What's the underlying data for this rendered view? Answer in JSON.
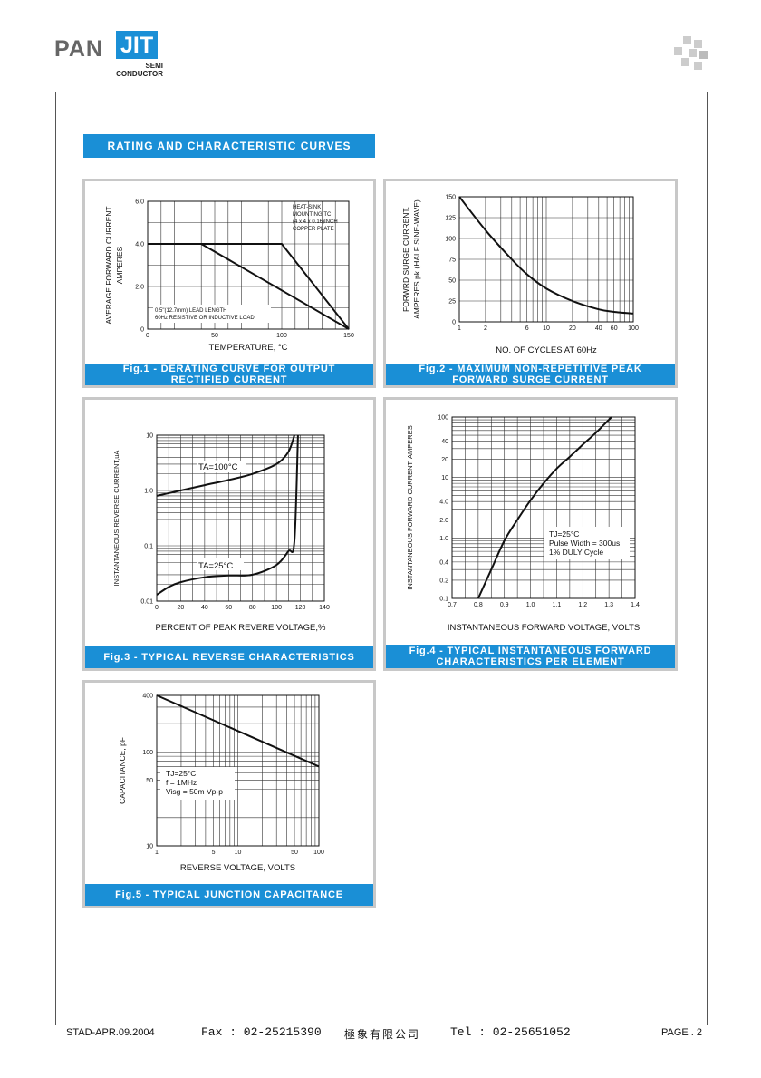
{
  "header": {
    "logo_text": "PAN",
    "logo_accent": "JIT",
    "logo_sub_1": "SEMI",
    "logo_sub_2": "CONDUCTOR",
    "brand_color": "#1a8fd6"
  },
  "section_title": "RATING AND CHARACTERISTIC CURVES",
  "footer": {
    "left": "STAD-APR.09.2004",
    "fax": "Fax : 02-25215390",
    "company": "極象有限公司",
    "tel": "Tel : 02-25651052",
    "page": "PAGE . 2"
  },
  "chart_data": [
    {
      "type": "line",
      "caption_1": "Fig.1 - DERATING CURVE FOR OUTPUT",
      "caption_2": "RECTIFIED CURRENT",
      "xlabel": "TEMPERATURE, °C",
      "ylabel_1": "AVERAGE FORWARD CURRENT",
      "ylabel_2": "AMPERES",
      "x_ticks": [
        "0",
        "50",
        "100",
        "150"
      ],
      "y_ticks": [
        "0",
        "2.0",
        "4.0",
        "6.0"
      ],
      "xlim": [
        0,
        150
      ],
      "ylim": [
        0,
        6
      ],
      "series": [
        {
          "x": [
            0,
            40,
            150
          ],
          "y": [
            4,
            4,
            0
          ]
        },
        {
          "x": [
            0,
            100,
            150
          ],
          "y": [
            4,
            4,
            0
          ]
        }
      ],
      "annotations": [
        "HEAT-SINK",
        "MOUNTING,TC",
        "(4 x 4 x 0.16)INCH",
        "COPPER PLATE",
        "0.5\"(12.7mm) LEAD LENGTH",
        "60Hz RESISTIVE OR INDUCTIVE LOAD"
      ]
    },
    {
      "type": "line",
      "caption_1": "Fig.2 - MAXIMUM NON-REPETITIVE PEAK",
      "caption_2": "FORWARD SURGE CURRENT",
      "xlabel": "NO. OF CYCLES AT 60Hz",
      "ylabel_1": "FORWRD SURGE CURRENT,",
      "ylabel_2": "AMPERES pk (HALF SINE-WAVE)",
      "x_ticks": [
        "1",
        "2",
        "6",
        "10",
        "20",
        "40",
        "60",
        "100"
      ],
      "y_ticks": [
        "0",
        "25",
        "50",
        "75",
        "100",
        "125",
        "150"
      ],
      "xlim": [
        1,
        100
      ],
      "ylim": [
        0,
        150
      ],
      "xscale": "log",
      "series": [
        {
          "x": [
            1,
            2,
            4,
            6,
            10,
            20,
            40,
            60,
            100
          ],
          "y": [
            150,
            110,
            75,
            57,
            40,
            25,
            15,
            12,
            10
          ]
        }
      ]
    },
    {
      "type": "line",
      "caption_1": "Fig.3 - TYPICAL REVERSE CHARACTERISTICS",
      "xlabel": "PERCENT OF PEAK REVERE VOLTAGE,%",
      "ylabel_1": "INSTANTANEOUS REVERSE CURRENT,uA",
      "x_ticks": [
        "0",
        "20",
        "40",
        "60",
        "80",
        "100",
        "120",
        "140"
      ],
      "y_ticks": [
        "0.01",
        "0.1",
        "1.0",
        "10"
      ],
      "xlim": [
        0,
        140
      ],
      "ylim": [
        0.01,
        10
      ],
      "yscale": "log",
      "series": [
        {
          "name": "TA=100°C",
          "x": [
            0,
            20,
            40,
            60,
            80,
            100,
            110,
            115
          ],
          "y": [
            0.8,
            1.0,
            1.25,
            1.55,
            2.0,
            3.0,
            5.0,
            10
          ]
        },
        {
          "name": "TA=25°C",
          "x": [
            0,
            10,
            20,
            40,
            60,
            80,
            100,
            110,
            115,
            118
          ],
          "y": [
            0.013,
            0.018,
            0.022,
            0.027,
            0.029,
            0.03,
            0.045,
            0.08,
            0.12,
            10
          ]
        }
      ],
      "series_labels": [
        "TA=100°C",
        "TA=25°C"
      ]
    },
    {
      "type": "line",
      "caption_1": "Fig.4 - TYPICAL INSTANTANEOUS FORWARD",
      "caption_2": "CHARACTERISTICS PER ELEMENT",
      "xlabel": "INSTANTANEOUS FORWARD VOLTAGE, VOLTS",
      "ylabel_1": "INSTANTANEOUS FORWARD CURRENT, AMPERES",
      "x_ticks": [
        "0.7",
        "0.8",
        "0.9",
        "1.0",
        "1.1",
        "1.2",
        "1.3",
        "1.4"
      ],
      "y_ticks": [
        "0.1",
        "0.2",
        "0.4",
        "1.0",
        "2.0",
        "4.0",
        "10",
        "20",
        "40",
        "100"
      ],
      "xlim": [
        0.7,
        1.4
      ],
      "ylim": [
        0.1,
        100
      ],
      "yscale": "log",
      "series": [
        {
          "x": [
            0.8,
            0.85,
            0.9,
            0.95,
            1.0,
            1.05,
            1.1,
            1.15,
            1.2,
            1.25,
            1.31
          ],
          "y": [
            0.1,
            0.3,
            0.9,
            2.0,
            4.2,
            8.0,
            14,
            22,
            35,
            55,
            100
          ]
        }
      ],
      "annotations": [
        "TJ=25°C",
        "Pulse Width = 300us",
        "1% DULY Cycle"
      ]
    },
    {
      "type": "line",
      "caption_1": "Fig.5 - TYPICAL JUNCTION CAPACITANCE",
      "xlabel": "REVERSE VOLTAGE, VOLTS",
      "ylabel_1": "CAPACITANCE, pF",
      "x_ticks": [
        "1",
        "5",
        "10",
        "50",
        "100"
      ],
      "y_ticks": [
        "10",
        "50",
        "100",
        "400"
      ],
      "xlim": [
        1,
        100
      ],
      "ylim": [
        10,
        400
      ],
      "xscale": "log",
      "yscale": "log",
      "series": [
        {
          "x": [
            1,
            100
          ],
          "y": [
            400,
            70
          ]
        }
      ],
      "annotations": [
        "TJ=25°C",
        "f = 1MHz",
        "Visg = 50m Vp-p"
      ]
    }
  ]
}
